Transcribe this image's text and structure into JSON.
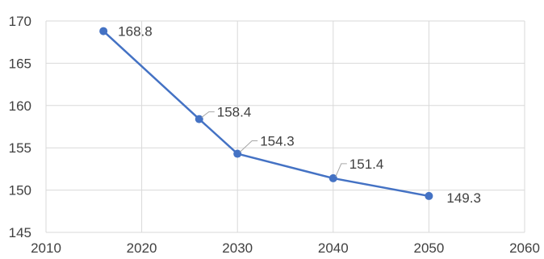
{
  "chart_data": {
    "type": "line",
    "title": "",
    "xlabel": "",
    "ylabel": "",
    "x_ticks": [
      "2010",
      "2020",
      "2030",
      "2040",
      "2050",
      "2060"
    ],
    "y_ticks": [
      "145",
      "150",
      "155",
      "160",
      "165",
      "170"
    ],
    "xlim": [
      2010,
      2060
    ],
    "ylim": [
      145,
      170
    ],
    "grid": true,
    "legend": "none",
    "series": [
      {
        "color": "#4472C4",
        "points": [
          {
            "x": 2016,
            "y": 168.8,
            "label": "168.8"
          },
          {
            "x": 2026,
            "y": 158.4,
            "label": "158.4"
          },
          {
            "x": 2030,
            "y": 154.3,
            "label": "154.3"
          },
          {
            "x": 2040,
            "y": 151.4,
            "label": "151.4"
          },
          {
            "x": 2050,
            "y": 149.3,
            "label": "149.3"
          }
        ]
      }
    ]
  }
}
